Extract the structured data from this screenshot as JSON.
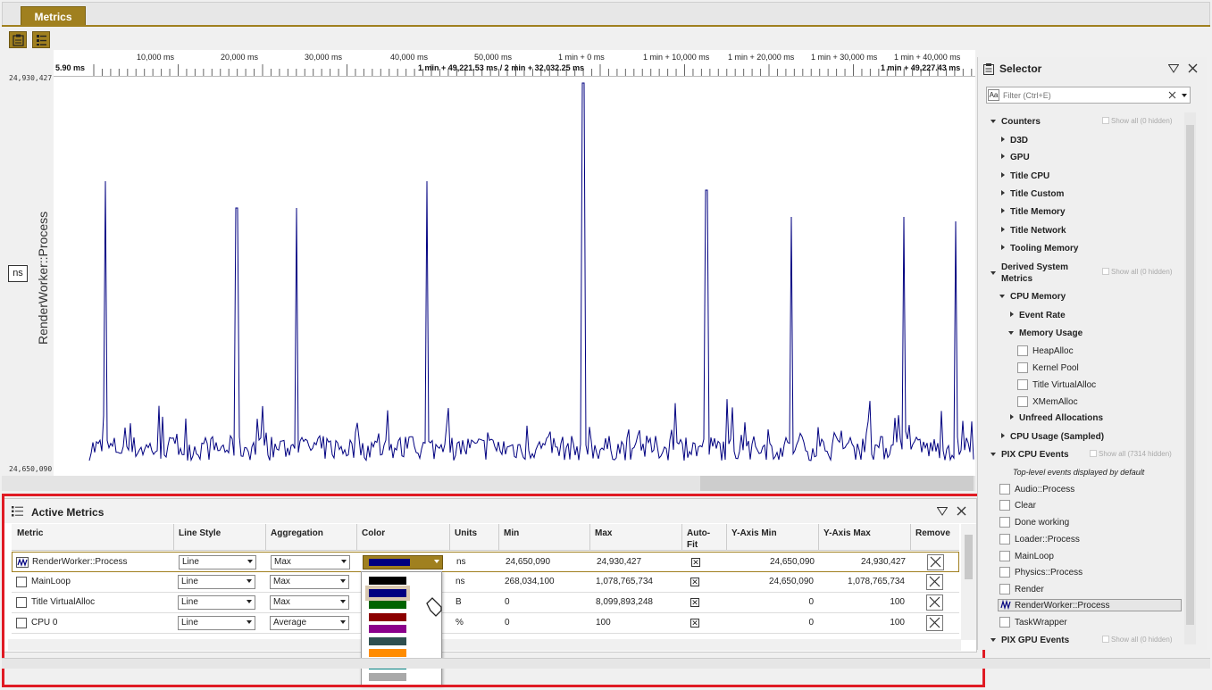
{
  "tabs": [
    {
      "label": "Metrics"
    }
  ],
  "timeline": {
    "ticks": [
      "10,000 ms",
      "20,000 ms",
      "30,000 ms",
      "40,000 ms",
      "50,000 ms",
      "1 min + 0 ms",
      "1 min + 10,000 ms",
      "1 min + 20,000 ms",
      "1 min + 30,000 ms",
      "1 min + 40,000 ms"
    ],
    "start": "5.90 ms",
    "selection": "1 min + 49,221.53 ms / 2 min + 32,032.25 ms",
    "end": "1 min + 49,227.43 ms"
  },
  "chart": {
    "y_label": "RenderWorker::Process",
    "unit": "ns",
    "y_max": "24,930,427",
    "y_min": "24,650,090",
    "line_color": "#000080"
  },
  "chart_data": {
    "type": "line",
    "ylabel": "RenderWorker::Process",
    "ylim": [
      24650090,
      24930427
    ],
    "series": [
      {
        "name": "RenderWorker::Process",
        "color": "#000080"
      }
    ]
  },
  "active_metrics": {
    "title": "Active Metrics",
    "columns": [
      "Metric",
      "Line Style",
      "Aggregation",
      "Color",
      "Units",
      "Min",
      "Max",
      "Auto-Fit",
      "Y-Axis Min",
      "Y-Axis Max",
      "Remove"
    ],
    "rows": [
      {
        "metric": "RenderWorker::Process",
        "line_style": "Line",
        "aggregation": "Max",
        "units": "ns",
        "min": "24,650,090",
        "max": "24,930,427",
        "autofit": "✕",
        "y_min": "24,650,090",
        "y_max": "24,930,427",
        "color": "#000080"
      },
      {
        "metric": "MainLoop",
        "line_style": "Line",
        "aggregation": "Max",
        "units": "ns",
        "min": "268,034,100",
        "max": "1,078,765,734",
        "autofit": "✕",
        "y_min": "24,650,090",
        "y_max": "1,078,765,734"
      },
      {
        "metric": "Title VirtualAlloc",
        "line_style": "Line",
        "aggregation": "Max",
        "units": "B",
        "min": "0",
        "max": "8,099,893,248",
        "autofit": "✕",
        "y_min": "0",
        "y_max": "100"
      },
      {
        "metric": "CPU 0",
        "line_style": "Line",
        "aggregation": "Average",
        "units": "%",
        "min": "0",
        "max": "100",
        "autofit": "✕",
        "y_min": "0",
        "y_max": "100"
      }
    ],
    "color_options": [
      "#000000",
      "#000080",
      "#006400",
      "#8b0000",
      "#8b008b",
      "#2f4f4f",
      "#ff8c00",
      "#008080",
      "#a9a9a9"
    ]
  },
  "selector": {
    "title": "Selector",
    "filter_placeholder": "Filter (Ctrl+E)",
    "filter_case": "Aa",
    "counters": "Counters",
    "show_all_0": "Show all (0 hidden)",
    "counter_items": [
      "D3D",
      "GPU",
      "Title CPU",
      "Title Custom",
      "Title Memory",
      "Title Network",
      "Tooling Memory"
    ],
    "derived_line1": "Derived System",
    "derived_line2": "Metrics",
    "cpu_memory": "CPU Memory",
    "event_rate": "Event Rate",
    "memory_usage": "Memory Usage",
    "memory_items": [
      "HeapAlloc",
      "Kernel Pool",
      "Title VirtualAlloc",
      "XMemAlloc"
    ],
    "unfreed": "Unfreed Allocations",
    "cpu_usage": "CPU Usage (Sampled)",
    "pix_cpu": "PIX CPU Events",
    "show_all_cpu": "Show all (7314 hidden)",
    "top_level_note": "Top-level events displayed by default",
    "cpu_events": [
      "Audio::Process",
      "Clear",
      "Done working",
      "Loader::Process",
      "MainLoop",
      "Physics::Process",
      "Render",
      "RenderWorker::Process",
      "TaskWrapper"
    ],
    "pix_gpu": "PIX GPU Events",
    "show_all_gpu": "Show all (0 hidden)"
  }
}
